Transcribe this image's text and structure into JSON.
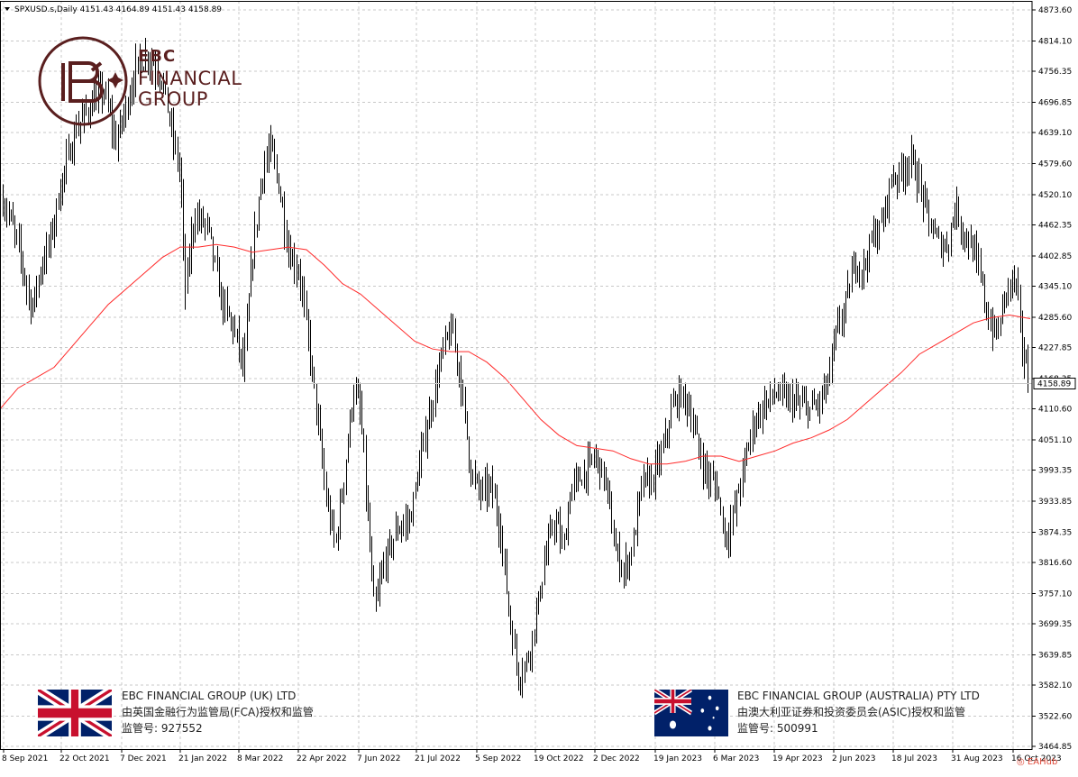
{
  "chart_data": {
    "type": "candlestick",
    "symbol_info": "SPXUSD.s,Daily  4151.43 4164.89 4151.43 4158.89",
    "last_price_label": "4158.89",
    "ylim": [
      3464.85,
      4873.6
    ],
    "y_ticks": [
      "4873.60",
      "4814.10",
      "4756.35",
      "4696.85",
      "4639.10",
      "4579.60",
      "4520.10",
      "4462.35",
      "4402.85",
      "4345.10",
      "4285.60",
      "4227.85",
      "4168.35",
      "4110.60",
      "4051.10",
      "3993.35",
      "3933.85",
      "3874.35",
      "3816.60",
      "3757.10",
      "3699.35",
      "3639.85",
      "3582.10",
      "3522.60",
      "3464.85"
    ],
    "x_ticks": [
      "8 Sep 2021",
      "22 Oct 2021",
      "7 Dec 2021",
      "21 Jan 2022",
      "8 Mar 2022",
      "22 Apr 2022",
      "7 Jun 2022",
      "21 Jul 2022",
      "5 Sep 2022",
      "19 Oct 2022",
      "2 Dec 2022",
      "19 Jan 2023",
      "6 Mar 2023",
      "19 Apr 2023",
      "2 Jun 2023",
      "18 Jul 2023",
      "31 Aug 2023",
      "16 Oct 2023"
    ],
    "price_path": [
      [
        0,
        4520
      ],
      [
        10,
        4480
      ],
      [
        20,
        4420
      ],
      [
        35,
        4300
      ],
      [
        45,
        4380
      ],
      [
        55,
        4430
      ],
      [
        70,
        4560
      ],
      [
        85,
        4650
      ],
      [
        100,
        4690
      ],
      [
        115,
        4720
      ],
      [
        128,
        4620
      ],
      [
        140,
        4690
      ],
      [
        150,
        4760
      ],
      [
        165,
        4790
      ],
      [
        180,
        4740
      ],
      [
        190,
        4640
      ],
      [
        200,
        4560
      ],
      [
        205,
        4330
      ],
      [
        215,
        4480
      ],
      [
        230,
        4460
      ],
      [
        245,
        4320
      ],
      [
        262,
        4250
      ],
      [
        270,
        4180
      ],
      [
        278,
        4370
      ],
      [
        290,
        4560
      ],
      [
        300,
        4610
      ],
      [
        310,
        4530
      ],
      [
        320,
        4410
      ],
      [
        332,
        4370
      ],
      [
        342,
        4240
      ],
      [
        352,
        4090
      ],
      [
        362,
        3930
      ],
      [
        372,
        3850
      ],
      [
        382,
        3990
      ],
      [
        392,
        4150
      ],
      [
        400,
        4100
      ],
      [
        408,
        3890
      ],
      [
        415,
        3720
      ],
      [
        425,
        3810
      ],
      [
        440,
        3880
      ],
      [
        455,
        3900
      ],
      [
        470,
        4050
      ],
      [
        480,
        4130
      ],
      [
        492,
        4230
      ],
      [
        502,
        4260
      ],
      [
        512,
        4150
      ],
      [
        522,
        3990
      ],
      [
        532,
        3950
      ],
      [
        545,
        3960
      ],
      [
        555,
        3880
      ],
      [
        565,
        3710
      ],
      [
        575,
        3600
      ],
      [
        585,
        3630
      ],
      [
        595,
        3720
      ],
      [
        605,
        3830
      ],
      [
        615,
        3900
      ],
      [
        625,
        3840
      ],
      [
        633,
        3960
      ],
      [
        645,
        3980
      ],
      [
        660,
        4020
      ],
      [
        672,
        3970
      ],
      [
        682,
        3840
      ],
      [
        692,
        3800
      ],
      [
        702,
        3850
      ],
      [
        712,
        3970
      ],
      [
        722,
        3970
      ],
      [
        735,
        4030
      ],
      [
        745,
        4110
      ],
      [
        755,
        4140
      ],
      [
        765,
        4110
      ],
      [
        775,
        4030
      ],
      [
        785,
        3980
      ],
      [
        795,
        3960
      ],
      [
        805,
        3860
      ],
      [
        815,
        3920
      ],
      [
        825,
        4000
      ],
      [
        835,
        4080
      ],
      [
        848,
        4120
      ],
      [
        860,
        4140
      ],
      [
        872,
        4130
      ],
      [
        885,
        4120
      ],
      [
        898,
        4110
      ],
      [
        908,
        4120
      ],
      [
        918,
        4160
      ],
      [
        928,
        4260
      ],
      [
        938,
        4310
      ],
      [
        948,
        4390
      ],
      [
        958,
        4380
      ],
      [
        968,
        4440
      ],
      [
        978,
        4460
      ],
      [
        988,
        4550
      ],
      [
        998,
        4560
      ],
      [
        1010,
        4590
      ],
      [
        1020,
        4540
      ],
      [
        1030,
        4470
      ],
      [
        1040,
        4430
      ],
      [
        1050,
        4420
      ],
      [
        1060,
        4500
      ],
      [
        1068,
        4450
      ],
      [
        1078,
        4420
      ],
      [
        1088,
        4360
      ],
      [
        1096,
        4280
      ],
      [
        1106,
        4250
      ],
      [
        1116,
        4340
      ],
      [
        1126,
        4360
      ],
      [
        1134,
        4230
      ],
      [
        1141,
        4158.89
      ]
    ],
    "ma_line": [
      [
        0,
        4110
      ],
      [
        20,
        4150
      ],
      [
        40,
        4170
      ],
      [
        60,
        4190
      ],
      [
        80,
        4230
      ],
      [
        100,
        4270
      ],
      [
        120,
        4310
      ],
      [
        140,
        4340
      ],
      [
        160,
        4370
      ],
      [
        180,
        4400
      ],
      [
        200,
        4420
      ],
      [
        220,
        4420
      ],
      [
        240,
        4425
      ],
      [
        260,
        4420
      ],
      [
        280,
        4410
      ],
      [
        300,
        4415
      ],
      [
        320,
        4420
      ],
      [
        340,
        4415
      ],
      [
        360,
        4385
      ],
      [
        380,
        4350
      ],
      [
        400,
        4330
      ],
      [
        420,
        4300
      ],
      [
        440,
        4270
      ],
      [
        460,
        4240
      ],
      [
        480,
        4225
      ],
      [
        500,
        4220
      ],
      [
        520,
        4220
      ],
      [
        540,
        4200
      ],
      [
        560,
        4170
      ],
      [
        580,
        4130
      ],
      [
        600,
        4090
      ],
      [
        620,
        4060
      ],
      [
        640,
        4040
      ],
      [
        660,
        4035
      ],
      [
        680,
        4030
      ],
      [
        700,
        4015
      ],
      [
        720,
        4005
      ],
      [
        740,
        4005
      ],
      [
        760,
        4010
      ],
      [
        780,
        4020
      ],
      [
        800,
        4020
      ],
      [
        820,
        4010
      ],
      [
        840,
        4020
      ],
      [
        860,
        4030
      ],
      [
        880,
        4045
      ],
      [
        900,
        4055
      ],
      [
        920,
        4070
      ],
      [
        940,
        4090
      ],
      [
        960,
        4120
      ],
      [
        980,
        4150
      ],
      [
        1000,
        4180
      ],
      [
        1020,
        4215
      ],
      [
        1040,
        4235
      ],
      [
        1060,
        4255
      ],
      [
        1080,
        4275
      ],
      [
        1100,
        4285
      ],
      [
        1120,
        4290
      ],
      [
        1143,
        4283
      ]
    ]
  },
  "logo": {
    "line1": "EBC",
    "line2": "FINANCIAL",
    "line3": "GROUP"
  },
  "entities": {
    "uk": {
      "name": "EBC FINANCIAL GROUP (UK) LTD",
      "regulator": "由英国金融行为监管局(FCA)授权和监管",
      "license": "监管号: 927552"
    },
    "au": {
      "name": "EBC FINANCIAL GROUP (AUSTRALIA) PTY LTD",
      "regulator": "由澳大利亚证券和投资委员会(ASIC)授权和监管",
      "license": "监管号: 500991"
    }
  },
  "watermark": "EAHub"
}
